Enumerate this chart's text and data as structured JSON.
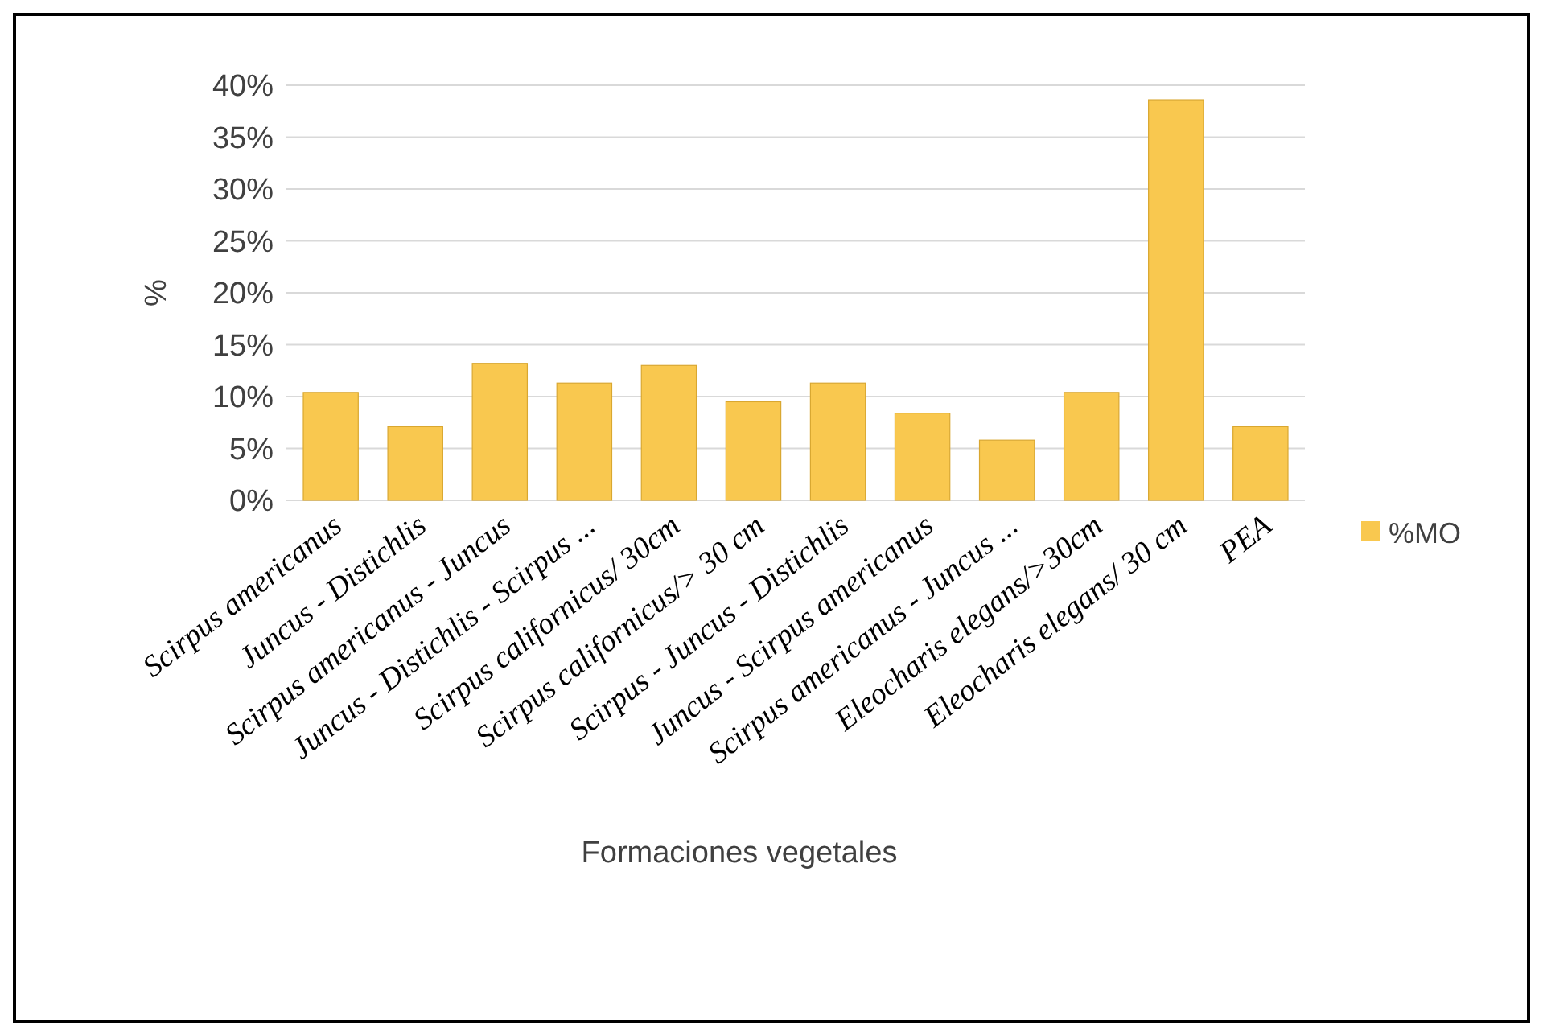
{
  "chart_data": {
    "type": "bar",
    "xlabel": "Formaciones vegetales",
    "ylabel": "%",
    "categories": [
      "Scirpus americanus",
      "Juncus - Distichlis",
      "Scirpus americanus - Juncus",
      "Juncus - Distichlis - Scirpus ...",
      "Scirpus californicus/ 30cm",
      "Scirpus californicus/> 30 cm",
      "Scirpus - Juncus - Distichlis",
      "Juncus - Scirpus americanus",
      "Scirpus americanus - Juncus ...",
      "Eleocharis elegans/>30cm",
      "Eleocharis elegans/ 30 cm",
      "PEA"
    ],
    "series": [
      {
        "name": "%MO",
        "color": "#f9c84f",
        "values": [
          10.4,
          7.1,
          13.2,
          11.3,
          13,
          9.5,
          11.3,
          8.4,
          5.8,
          10.4,
          38.6,
          7.1
        ]
      }
    ],
    "ylim": [
      0,
      40
    ],
    "yticks": [
      {
        "value": 0,
        "label": "0%"
      },
      {
        "value": 5,
        "label": "5%"
      },
      {
        "value": 10,
        "label": "10%"
      },
      {
        "value": 15,
        "label": "15%"
      },
      {
        "value": 20,
        "label": "20%"
      },
      {
        "value": 25,
        "label": "25%"
      },
      {
        "value": 30,
        "label": "30%"
      },
      {
        "value": 35,
        "label": "35%"
      },
      {
        "value": 40,
        "label": "40%"
      }
    ],
    "grid": true,
    "legend": "right"
  }
}
